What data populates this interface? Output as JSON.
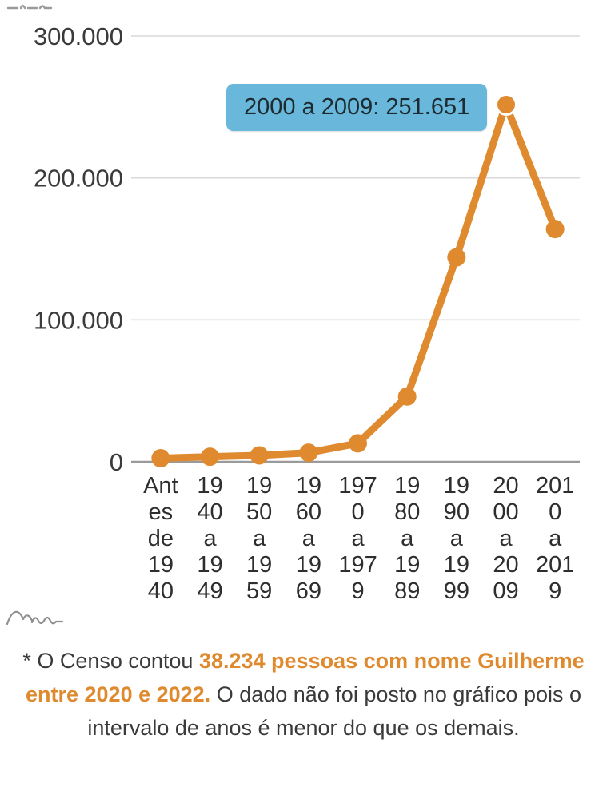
{
  "chart_data": {
    "type": "line",
    "title": "",
    "categories": [
      "Antes de 1940",
      "1940 a 1949",
      "1950 a 1959",
      "1960 a 1969",
      "1970 a 1979",
      "1980 a 1989",
      "1990 a 1999",
      "2000 a 2009",
      "2010 a 2019"
    ],
    "tick_labels": [
      "Ant\nes\nde\n19\n40",
      "19\n40\na\n19\n49",
      "19\n50\na\n19\n59",
      "19\n60\na\n19\n69",
      "197\n0\na\n197\n9",
      "19\n80\na\n19\n89",
      "19\n90\na\n19\n99",
      "20\n00\na\n20\n09",
      "201\n0\na\n201\n9"
    ],
    "values": [
      2500,
      3600,
      4500,
      6400,
      13000,
      46000,
      144000,
      251651,
      164000
    ],
    "y_ticks": [
      {
        "value": 0,
        "label": "0"
      },
      {
        "value": 100000,
        "label": "100.000"
      },
      {
        "value": 200000,
        "label": "200.000"
      },
      {
        "value": 300000,
        "label": "300.000"
      }
    ],
    "ylim": [
      0,
      300000
    ],
    "grid": true,
    "legend": "none",
    "xlabel": "",
    "ylabel": "",
    "line_color": "#df8a2e",
    "grid_color": "#d9d9d9",
    "axis_color": "#9a9a9a",
    "tick_text_color": "#3b3b3b",
    "tooltip": {
      "text": "2000 a 2009: 251.651",
      "point_index": 7,
      "bg": "#69b7da"
    }
  },
  "footer": {
    "prefix": "* O Censo contou ",
    "highlight": "38.234 pessoas com nome Guilherme entre 2020 e 2022.",
    "suffix": " O dado não foi posto no gráfico pois o intervalo de anos é menor do que os demais.",
    "highlight_color": "#df8a2e"
  },
  "icons": {
    "logo": "waves-logo",
    "top_left": "cropped-artifact"
  }
}
